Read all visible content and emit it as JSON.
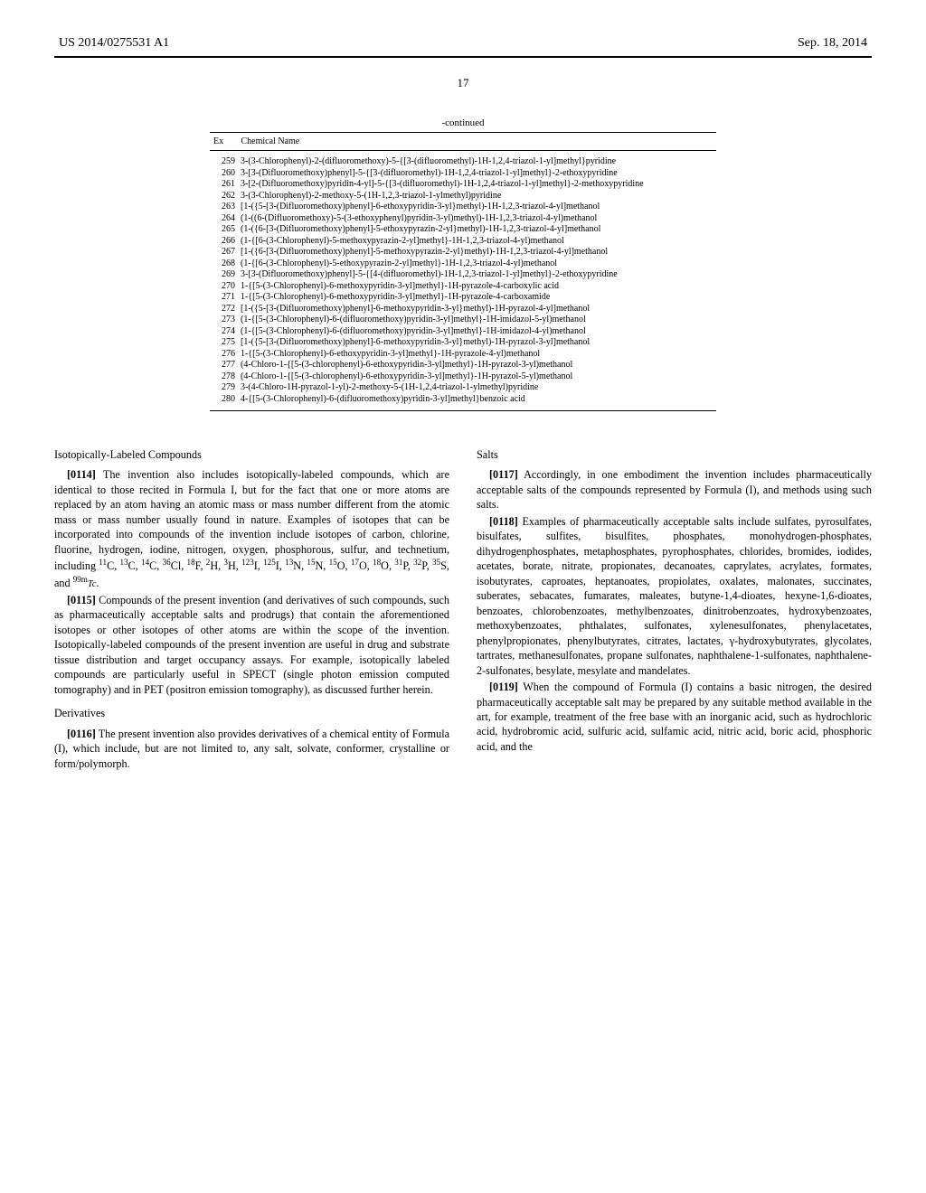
{
  "header": {
    "pub_number": "US 2014/0275531 A1",
    "pub_date": "Sep. 18, 2014"
  },
  "page_number": "17",
  "table": {
    "continued_label": "-continued",
    "head_ex": "Ex",
    "head_name": "Chemical Name",
    "rows": [
      {
        "ex": "259",
        "name": "3-(3-Chlorophenyl)-2-(difluoromethoxy)-5-{[3-(difluoromethyl)-1H-1,2,4-triazol-1-yl]methyl}pyridine"
      },
      {
        "ex": "260",
        "name": "3-[3-(Difluoromethoxy)phenyl]-5-{[3-(difluoromethyl)-1H-1,2,4-triazol-1-yl]methyl}-2-ethoxypyridine"
      },
      {
        "ex": "261",
        "name": "3-[2-(Difluoromethoxy)pyridin-4-yl]-5-{[3-(difluoromethyl)-1H-1,2,4-triazol-1-yl]methyl}-2-methoxypyridine"
      },
      {
        "ex": "262",
        "name": "3-(3-Chlorophenyl)-2-methoxy-5-(1H-1,2,3-triazol-1-ylmethyl)pyridine"
      },
      {
        "ex": "263",
        "name": "[1-({5-[3-(Difluoromethoxy)phenyl]-6-ethoxypyridin-3-yl}methyl)-1H-1,2,3-triazol-4-yl]methanol"
      },
      {
        "ex": "264",
        "name": "(1-((6-(Difluoromethoxy)-5-(3-ethoxyphenyl)pyridin-3-yl)methyl)-1H-1,2,3-triazol-4-yl)methanol"
      },
      {
        "ex": "265",
        "name": "(1-({6-[3-(Difluoromethoxy)phenyl]-5-ethoxypyrazin-2-yl}methyl)-1H-1,2,3-triazol-4-yl]methanol"
      },
      {
        "ex": "266",
        "name": "(1-{[6-(3-Chlorophenyl)-5-methoxypyrazin-2-yl]methyl}-1H-1,2,3-triazol-4-yl)methanol"
      },
      {
        "ex": "267",
        "name": "[1-({6-[3-(Difluoromethoxy)phenyl]-5-methoxypyrazin-2-yl}methyl)-1H-1,2,3-triazol-4-yl]methanol"
      },
      {
        "ex": "268",
        "name": "(1-{[6-(3-Chlorophenyl)-5-ethoxypyrazin-2-yl]methyl}-1H-1,2,3-triazol-4-yl)methanol"
      },
      {
        "ex": "269",
        "name": "3-[3-(Difluoromethoxy)phenyl]-5-{[4-(difluoromethyl)-1H-1,2,3-triazol-1-yl]methyl}-2-ethoxypyridine"
      },
      {
        "ex": "270",
        "name": "1-{[5-(3-Chlorophenyl)-6-methoxypyridin-3-yl]methyl}-1H-pyrazole-4-carboxylic acid"
      },
      {
        "ex": "271",
        "name": "1-{[5-(3-Chlorophenyl)-6-methoxypyridin-3-yl]methyl}-1H-pyrazole-4-carboxamide"
      },
      {
        "ex": "272",
        "name": "[1-({5-[3-(Difluoromethoxy)phenyl]-6-methoxypyridin-3-yl}methyl)-1H-pyrazol-4-yl]methanol"
      },
      {
        "ex": "273",
        "name": "(1-{[5-(3-Chlorophenyl)-6-(difluoromethoxy)pyridin-3-yl]methyl}-1H-imidazol-5-yl)methanol"
      },
      {
        "ex": "274",
        "name": "(1-{[5-(3-Chlorophenyl)-6-(difluoromethoxy)pyridin-3-yl]methyl}-1H-imidazol-4-yl)methanol"
      },
      {
        "ex": "275",
        "name": "[1-({5-[3-(Difluoromethoxy)phenyl]-6-methoxypyridin-3-yl}methyl)-1H-pyrazol-3-yl]methanol"
      },
      {
        "ex": "276",
        "name": "1-{[5-(3-Chlorophenyl)-6-ethoxypyridin-3-yl]methyl}-1H-pyrazole-4-yl)methanol"
      },
      {
        "ex": "277",
        "name": "(4-Chloro-1-{[5-(3-chlorophenyl)-6-ethoxypyridin-3-yl]methyl}-1H-pyrazol-3-yl)methanol"
      },
      {
        "ex": "278",
        "name": "(4-Chloro-1-{[5-(3-chlorophenyl)-6-ethoxypyridin-3-yl]methyl}-1H-pyrazol-5-yl)methanol"
      },
      {
        "ex": "279",
        "name": "3-(4-Chloro-1H-pyrazol-1-yl)-2-methoxy-5-(1H-1,2,4-triazol-1-ylmethyl)pyridine"
      },
      {
        "ex": "280",
        "name": "4-{[5-(3-Chlorophenyl)-6-(difluoromethoxy)pyridin-3-yl]methyl}benzoic acid"
      }
    ]
  },
  "sections": {
    "iso_head": "Isotopically-Labeled Compounds",
    "p0114_num": "[0114]",
    "p0114_text": "The invention also includes isotopically-labeled compounds, which are identical to those recited in Formula I, but for the fact that one or more atoms are replaced by an atom having an atomic mass or mass number different from the atomic mass or mass number usually found in nature. Examples of isotopes that can be incorporated into compounds of the invention include isotopes of carbon, chlorine, fluorine, hydrogen, iodine, nitrogen, oxygen, phosphorous, sulfur, and technetium, including ",
    "isotope_list_html": "<sup>11</sup>C, <sup>13</sup>C, <sup>14</sup>C, <sup>36</sup>Cl, <sup>18</sup>F, <sup>2</sup>H, <sup>3</sup>H, <sup>123</sup>I, <sup>125</sup>I, <sup>13</sup>N, <sup>15</sup>N, <sup>15</sup>O, <sup>17</sup>O, <sup>18</sup>O, <sup>31</sup>P, <sup>32</sup>P, <sup>35</sup>S, and <sup>99m</sup><i style='font-size:0.85em'>Tc</i>.",
    "p0115_num": "[0115]",
    "p0115_text": "Compounds of the present invention (and derivatives of such compounds, such as pharmaceutically acceptable salts and prodrugs) that contain the aforementioned isotopes or other isotopes of other atoms are within the scope of the invention. Isotopically-labeled compounds of the present invention are useful in drug and substrate tissue distribution and target occupancy assays. For example, isotopically labeled compounds are particularly useful in SPECT (single photon emission computed tomography) and in PET (positron emission tomography), as discussed further herein.",
    "deriv_head": "Derivatives",
    "p0116_num": "[0116]",
    "p0116_text": "The present invention also provides derivatives of a chemical entity of Formula (I), which include, but are not limited to, any salt, solvate, conformer, crystalline or form/polymorph.",
    "salts_head": "Salts",
    "p0117_num": "[0117]",
    "p0117_text": "Accordingly, in one embodiment the invention includes pharmaceutically acceptable salts of the compounds represented by Formula (I), and methods using such salts.",
    "p0118_num": "[0118]",
    "p0118_text": "Examples of pharmaceutically acceptable salts include sulfates, pyrosulfates, bisulfates, sulfites, bisulfites, phosphates, monohydrogen-phosphates, dihydrogenphosphates, metaphosphates, pyrophosphates, chlorides, bromides, iodides, acetates, borate, nitrate, propionates, decanoates, caprylates, acrylates, formates, isobutyrates, caproates, heptanoates, propiolates, oxalates, malonates, succinates, suberates, sebacates, fumarates, maleates, butyne-1,4-dioates, hexyne-1,6-dioates, benzoates, chlorobenzoates, methylbenzoates, dinitrobenzoates, hydroxybenzoates, methoxybenzoates, phthalates, sulfonates, xylenesulfonates, phenylacetates, phenylpropionates, phenylbutyrates, citrates, lactates, γ-hydroxybutyrates, glycolates, tartrates, methanesulfonates, propane sulfonates, naphthalene-1-sulfonates, naphthalene-2-sulfonates, besylate, mesylate and mandelates.",
    "p0119_num": "[0119]",
    "p0119_text": "When the compound of Formula (I) contains a basic nitrogen, the desired pharmaceutically acceptable salt may be prepared by any suitable method available in the art, for example, treatment of the free base with an inorganic acid, such as hydrochloric acid, hydrobromic acid, sulfuric acid, sulfamic acid, nitric acid, boric acid, phosphoric acid, and the"
  }
}
